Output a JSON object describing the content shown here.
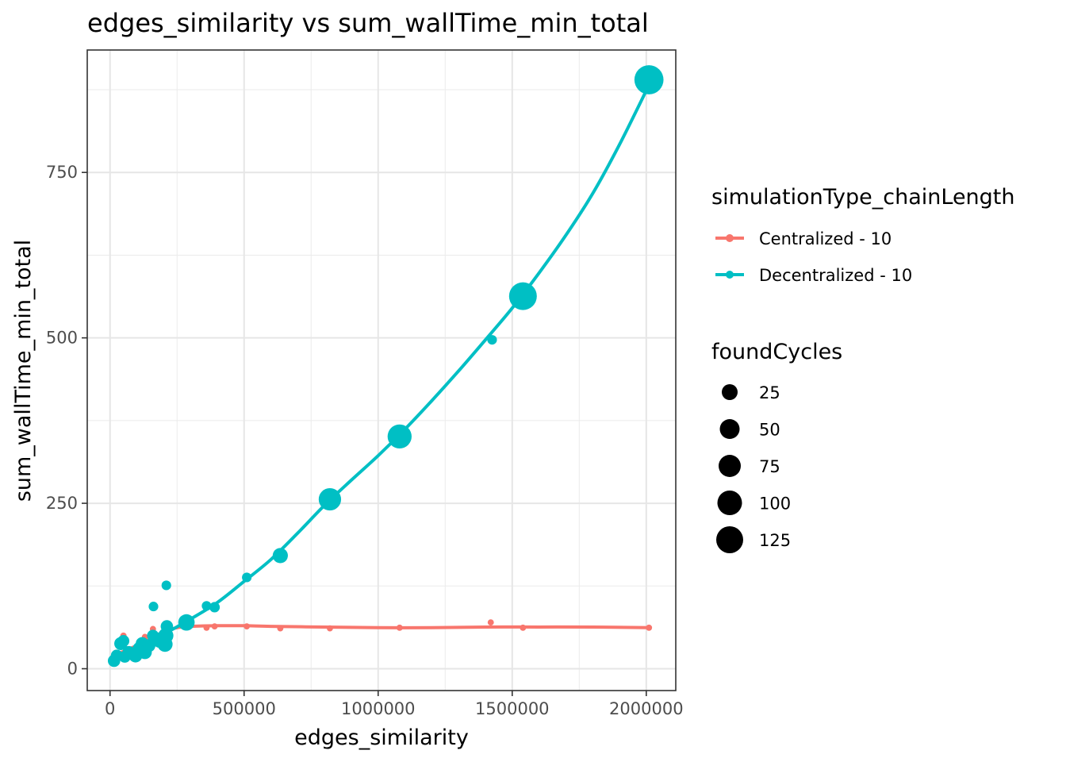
{
  "chart_data": {
    "type": "scatter",
    "title": "edges_similarity  vs  sum_wallTime_min_total",
    "xlabel": "edges_similarity",
    "ylabel": "sum_wallTime_min_total",
    "xlim": [
      -85000,
      2110000
    ],
    "ylim": [
      -33,
      935
    ],
    "x_ticks": [
      0,
      500000,
      1000000,
      1500000,
      2000000
    ],
    "x_tick_labels": [
      "0",
      "500000",
      "1000000",
      "1500000",
      "2000000"
    ],
    "y_ticks": [
      0,
      250,
      500,
      750
    ],
    "y_tick_labels": [
      "0",
      "250",
      "500",
      "750"
    ],
    "grid": true,
    "legend_position": "right",
    "color_legend": {
      "title": "simulationType_chainLength",
      "entries": [
        "Centralized - 10",
        "Decentralized - 10"
      ]
    },
    "size_legend": {
      "title": "foundCycles",
      "entries": [
        {
          "label": "25",
          "value": 25
        },
        {
          "label": "50",
          "value": 50
        },
        {
          "label": "75",
          "value": 75
        },
        {
          "label": "100",
          "value": 100
        },
        {
          "label": "125",
          "value": 125
        }
      ]
    },
    "series": [
      {
        "name": "Centralized - 10",
        "color": "#F8766D",
        "points": [
          {
            "x": 15000,
            "y": 12,
            "size": 5
          },
          {
            "x": 30000,
            "y": 22,
            "size": 5
          },
          {
            "x": 50000,
            "y": 50,
            "size": 5
          },
          {
            "x": 60000,
            "y": 30,
            "size": 5
          },
          {
            "x": 90000,
            "y": 28,
            "size": 5
          },
          {
            "x": 110000,
            "y": 40,
            "size": 5
          },
          {
            "x": 130000,
            "y": 48,
            "size": 5
          },
          {
            "x": 160000,
            "y": 60,
            "size": 5
          },
          {
            "x": 210000,
            "y": 62,
            "size": 5
          },
          {
            "x": 280000,
            "y": 65,
            "size": 5
          },
          {
            "x": 360000,
            "y": 62,
            "size": 5
          },
          {
            "x": 390000,
            "y": 64,
            "size": 5
          },
          {
            "x": 510000,
            "y": 64,
            "size": 5
          },
          {
            "x": 635000,
            "y": 61,
            "size": 5
          },
          {
            "x": 820000,
            "y": 61,
            "size": 5
          },
          {
            "x": 1080000,
            "y": 62,
            "size": 5
          },
          {
            "x": 1420000,
            "y": 70,
            "size": 5
          },
          {
            "x": 1540000,
            "y": 62,
            "size": 5
          },
          {
            "x": 2010000,
            "y": 62,
            "size": 5
          }
        ],
        "smooth": [
          {
            "x": 15000,
            "y": 20
          },
          {
            "x": 60000,
            "y": 28
          },
          {
            "x": 100000,
            "y": 35
          },
          {
            "x": 150000,
            "y": 45
          },
          {
            "x": 200000,
            "y": 56
          },
          {
            "x": 250000,
            "y": 62
          },
          {
            "x": 300000,
            "y": 64
          },
          {
            "x": 400000,
            "y": 65
          },
          {
            "x": 500000,
            "y": 65
          },
          {
            "x": 600000,
            "y": 64
          },
          {
            "x": 800000,
            "y": 63
          },
          {
            "x": 1000000,
            "y": 62
          },
          {
            "x": 1200000,
            "y": 62
          },
          {
            "x": 1400000,
            "y": 63
          },
          {
            "x": 1600000,
            "y": 63
          },
          {
            "x": 1800000,
            "y": 63
          },
          {
            "x": 2010000,
            "y": 62
          }
        ]
      },
      {
        "name": "Decentralized - 10",
        "color": "#00BFC4",
        "points": [
          {
            "x": 15000,
            "y": 12,
            "size": 20
          },
          {
            "x": 25000,
            "y": 20,
            "size": 18
          },
          {
            "x": 40000,
            "y": 38,
            "size": 22
          },
          {
            "x": 50000,
            "y": 42,
            "size": 18
          },
          {
            "x": 55000,
            "y": 18,
            "size": 18
          },
          {
            "x": 70000,
            "y": 25,
            "size": 20
          },
          {
            "x": 95000,
            "y": 20,
            "size": 25
          },
          {
            "x": 110000,
            "y": 30,
            "size": 25
          },
          {
            "x": 120000,
            "y": 38,
            "size": 22
          },
          {
            "x": 130000,
            "y": 25,
            "size": 25
          },
          {
            "x": 145000,
            "y": 35,
            "size": 22
          },
          {
            "x": 160000,
            "y": 50,
            "size": 18
          },
          {
            "x": 162000,
            "y": 94,
            "size": 12
          },
          {
            "x": 175000,
            "y": 45,
            "size": 22
          },
          {
            "x": 185000,
            "y": 42,
            "size": 25
          },
          {
            "x": 205000,
            "y": 37,
            "size": 30
          },
          {
            "x": 208000,
            "y": 50,
            "size": 30
          },
          {
            "x": 210000,
            "y": 126,
            "size": 12
          },
          {
            "x": 212000,
            "y": 64,
            "size": 20
          },
          {
            "x": 285000,
            "y": 70,
            "size": 35
          },
          {
            "x": 360000,
            "y": 95,
            "size": 12
          },
          {
            "x": 390000,
            "y": 93,
            "size": 14
          },
          {
            "x": 510000,
            "y": 138,
            "size": 12
          },
          {
            "x": 635000,
            "y": 171,
            "size": 30
          },
          {
            "x": 820000,
            "y": 256,
            "size": 65
          },
          {
            "x": 1080000,
            "y": 351,
            "size": 75
          },
          {
            "x": 1425000,
            "y": 497,
            "size": 12
          },
          {
            "x": 1540000,
            "y": 563,
            "size": 100
          },
          {
            "x": 2010000,
            "y": 890,
            "size": 110
          }
        ],
        "smooth": [
          {
            "x": 15000,
            "y": 15
          },
          {
            "x": 100000,
            "y": 30
          },
          {
            "x": 200000,
            "y": 52
          },
          {
            "x": 300000,
            "y": 75
          },
          {
            "x": 400000,
            "y": 100
          },
          {
            "x": 500000,
            "y": 132
          },
          {
            "x": 600000,
            "y": 165
          },
          {
            "x": 700000,
            "y": 205
          },
          {
            "x": 800000,
            "y": 247
          },
          {
            "x": 900000,
            "y": 285
          },
          {
            "x": 1000000,
            "y": 322
          },
          {
            "x": 1100000,
            "y": 362
          },
          {
            "x": 1200000,
            "y": 405
          },
          {
            "x": 1300000,
            "y": 450
          },
          {
            "x": 1400000,
            "y": 497
          },
          {
            "x": 1500000,
            "y": 545
          },
          {
            "x": 1600000,
            "y": 598
          },
          {
            "x": 1700000,
            "y": 655
          },
          {
            "x": 1800000,
            "y": 718
          },
          {
            "x": 1900000,
            "y": 792
          },
          {
            "x": 2010000,
            "y": 882
          }
        ]
      }
    ]
  }
}
